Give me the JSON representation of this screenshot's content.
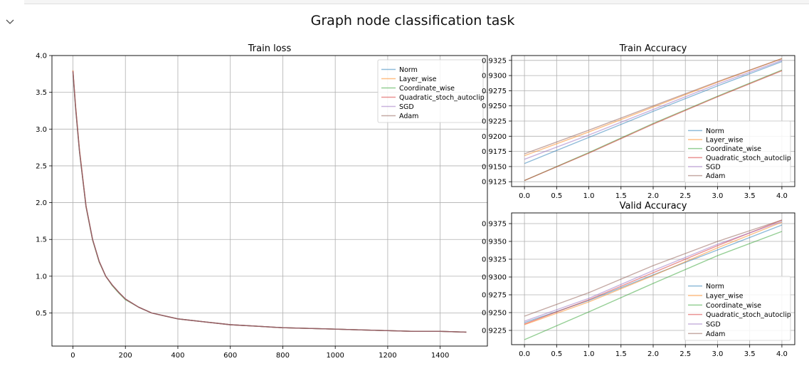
{
  "figure": {
    "title": "Graph node classification task"
  },
  "colors": {
    "Norm": "#1f77b4",
    "Layer_wise": "#ff7f0e",
    "Coordinate_wise": "#2ca02c",
    "Quadratic_stoch_autoclip": "#d62728",
    "SGD": "#9467bd",
    "Adam": "#8c564b"
  },
  "chart_data": [
    {
      "type": "line",
      "title": "Train loss",
      "xlabel": "",
      "ylabel": "",
      "xlim": [
        -80,
        1580
      ],
      "ylim": [
        0.05,
        4.0
      ],
      "xticks": [
        0,
        200,
        400,
        600,
        800,
        1000,
        1200,
        1400
      ],
      "yticks": [
        0.5,
        1.0,
        1.5,
        2.0,
        2.5,
        3.0,
        3.5,
        4.0
      ],
      "grid": true,
      "legend": "top-right",
      "x": [
        0,
        10,
        25,
        50,
        75,
        100,
        125,
        150,
        175,
        200,
        250,
        300,
        350,
        400,
        500,
        600,
        700,
        800,
        900,
        1000,
        1100,
        1200,
        1300,
        1400,
        1500
      ],
      "series": [
        {
          "name": "Norm",
          "values": [
            3.78,
            3.3,
            2.7,
            1.95,
            1.5,
            1.2,
            1.0,
            0.88,
            0.78,
            0.69,
            0.58,
            0.5,
            0.46,
            0.42,
            0.38,
            0.34,
            0.32,
            0.3,
            0.29,
            0.28,
            0.27,
            0.26,
            0.25,
            0.25,
            0.24
          ]
        },
        {
          "name": "Layer_wise",
          "values": [
            3.8,
            3.32,
            2.72,
            1.96,
            1.5,
            1.2,
            1.0,
            0.88,
            0.78,
            0.69,
            0.58,
            0.5,
            0.46,
            0.42,
            0.38,
            0.34,
            0.32,
            0.3,
            0.29,
            0.28,
            0.27,
            0.26,
            0.25,
            0.25,
            0.24
          ]
        },
        {
          "name": "Coordinate_wise",
          "values": [
            3.77,
            3.28,
            2.69,
            1.94,
            1.49,
            1.19,
            1.0,
            0.87,
            0.77,
            0.68,
            0.58,
            0.5,
            0.46,
            0.42,
            0.38,
            0.34,
            0.32,
            0.3,
            0.29,
            0.28,
            0.27,
            0.26,
            0.25,
            0.25,
            0.24
          ]
        },
        {
          "name": "Quadratic_stoch_autoclip",
          "values": [
            3.79,
            3.31,
            2.71,
            1.95,
            1.5,
            1.2,
            1.0,
            0.88,
            0.78,
            0.69,
            0.58,
            0.5,
            0.46,
            0.42,
            0.38,
            0.34,
            0.32,
            0.3,
            0.29,
            0.28,
            0.27,
            0.26,
            0.25,
            0.25,
            0.24
          ]
        },
        {
          "name": "SGD",
          "values": [
            3.78,
            3.29,
            2.7,
            1.95,
            1.5,
            1.2,
            1.0,
            0.88,
            0.78,
            0.69,
            0.58,
            0.5,
            0.46,
            0.42,
            0.38,
            0.34,
            0.32,
            0.3,
            0.29,
            0.28,
            0.27,
            0.26,
            0.25,
            0.25,
            0.24
          ]
        },
        {
          "name": "Adam",
          "values": [
            3.79,
            3.3,
            2.7,
            1.95,
            1.5,
            1.2,
            1.0,
            0.88,
            0.78,
            0.69,
            0.58,
            0.5,
            0.46,
            0.42,
            0.38,
            0.34,
            0.32,
            0.3,
            0.29,
            0.28,
            0.27,
            0.26,
            0.25,
            0.25,
            0.24
          ]
        }
      ]
    },
    {
      "type": "line",
      "title": "Train Accuracy",
      "xlabel": "",
      "ylabel": "",
      "xlim": [
        -0.2,
        4.2
      ],
      "ylim": [
        0.9117,
        0.9333
      ],
      "xticks": [
        0.0,
        0.5,
        1.0,
        1.5,
        2.0,
        2.5,
        3.0,
        3.5,
        4.0
      ],
      "yticks": [
        0.9125,
        0.915,
        0.9175,
        0.92,
        0.9225,
        0.925,
        0.9275,
        0.93,
        0.9325
      ],
      "grid": true,
      "legend": "bottom-right",
      "x": [
        0,
        1,
        2,
        3,
        4
      ],
      "series": [
        {
          "name": "Norm",
          "values": [
            0.9155,
            0.9198,
            0.9241,
            0.9283,
            0.9323
          ]
        },
        {
          "name": "Layer_wise",
          "values": [
            0.9168,
            0.9207,
            0.9248,
            0.9289,
            0.9328
          ]
        },
        {
          "name": "Coordinate_wise",
          "values": [
            0.9127,
            0.9173,
            0.9221,
            0.9266,
            0.9309
          ]
        },
        {
          "name": "Quadratic_stoch_autoclip",
          "values": [
            0.9127,
            0.9172,
            0.922,
            0.9265,
            0.9308
          ]
        },
        {
          "name": "SGD",
          "values": [
            0.9162,
            0.9202,
            0.9244,
            0.9286,
            0.9325
          ]
        },
        {
          "name": "Adam",
          "values": [
            0.9171,
            0.921,
            0.925,
            0.929,
            0.9328
          ]
        }
      ]
    },
    {
      "type": "line",
      "title": "Valid Accuracy",
      "xlabel": "",
      "ylabel": "",
      "xlim": [
        -0.2,
        4.2
      ],
      "ylim": [
        0.9205,
        0.939
      ],
      "xticks": [
        0.0,
        0.5,
        1.0,
        1.5,
        2.0,
        2.5,
        3.0,
        3.5,
        4.0
      ],
      "yticks": [
        0.9225,
        0.925,
        0.9275,
        0.93,
        0.9325,
        0.935,
        0.9375
      ],
      "grid": true,
      "legend": "bottom-right",
      "x": [
        0,
        1,
        2,
        3,
        4
      ],
      "series": [
        {
          "name": "Norm",
          "values": [
            0.9236,
            0.9267,
            0.9303,
            0.9338,
            0.9373
          ]
        },
        {
          "name": "Layer_wise",
          "values": [
            0.9233,
            0.9265,
            0.9302,
            0.9341,
            0.9377
          ]
        },
        {
          "name": "Coordinate_wise",
          "values": [
            0.9212,
            0.9251,
            0.9291,
            0.933,
            0.9364
          ]
        },
        {
          "name": "Quadratic_stoch_autoclip",
          "values": [
            0.9234,
            0.9268,
            0.9306,
            0.9344,
            0.938
          ]
        },
        {
          "name": "SGD",
          "values": [
            0.9238,
            0.927,
            0.9309,
            0.9346,
            0.9378
          ]
        },
        {
          "name": "Adam",
          "values": [
            0.9245,
            0.9278,
            0.9316,
            0.935,
            0.938
          ]
        }
      ]
    }
  ]
}
